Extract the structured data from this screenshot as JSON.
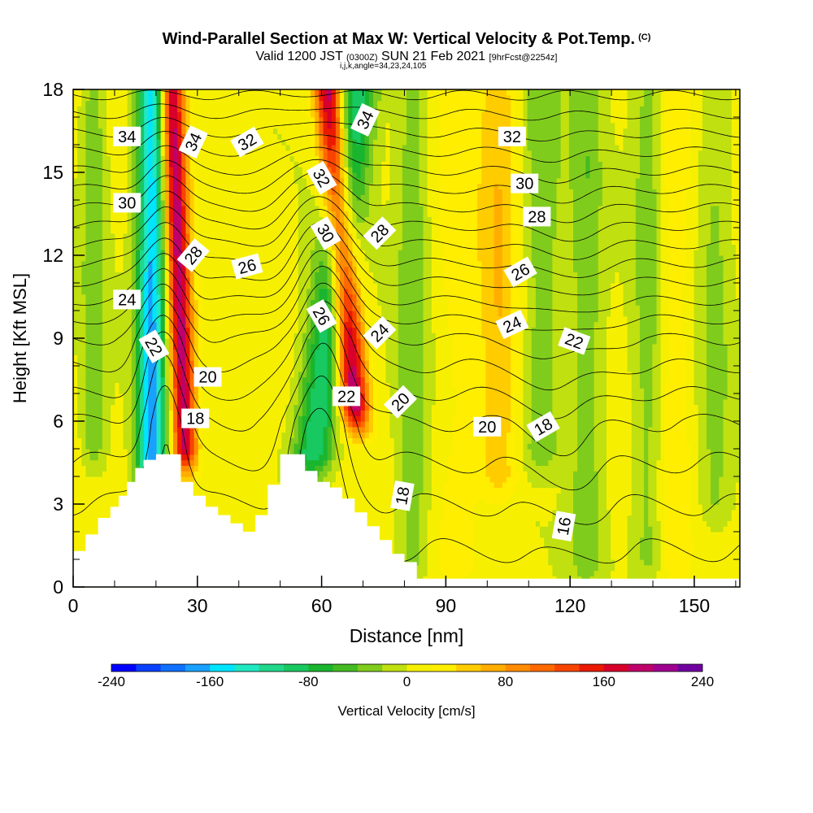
{
  "header": {
    "title": "Wind-Parallel Section at Max W: Vertical Velocity & Pot.Temp.",
    "copyright": "(C)",
    "valid_prefix": "Valid 1200 JST",
    "valid_utc": "(0300Z)",
    "valid_date": "SUN 21 Feb 2021",
    "forecast": "[9hrFcst@2254z]",
    "indices": "i,j,k,angle=34,23,24,105"
  },
  "colors": {
    "vv_levels": [
      -240,
      -220,
      -200,
      -180,
      -160,
      -140,
      -120,
      -100,
      -80,
      -60,
      -40,
      -20,
      0,
      20,
      40,
      60,
      80,
      100,
      120,
      140,
      160,
      180,
      200,
      220,
      240
    ],
    "vv_palette": [
      "#0000ff",
      "#0a40ff",
      "#1070ff",
      "#1aa0ff",
      "#00e5ff",
      "#20e8c0",
      "#20d88a",
      "#18c860",
      "#1ab52f",
      "#44bb22",
      "#80cc1c",
      "#c0e010",
      "#f6f000",
      "#ffee00",
      "#ffcc00",
      "#ffae00",
      "#ff8c00",
      "#ff6a00",
      "#f84400",
      "#ea1a00",
      "#d8002a",
      "#c0006a",
      "#a00090",
      "#7000a0"
    ],
    "contour": "#000000",
    "terrain": "#ffffff"
  },
  "chart_data": {
    "type": "heatmap",
    "xlabel": "Distance [nm]",
    "ylabel": "Height [Kft MSL]",
    "xlim": [
      0,
      161
    ],
    "ylim": [
      0,
      18
    ],
    "x_ticks": [
      0,
      30,
      60,
      90,
      120,
      150
    ],
    "y_ticks": [
      0,
      3,
      6,
      9,
      12,
      15,
      18
    ],
    "colorbar": {
      "label": "Vertical Velocity [cm/s]",
      "range": [
        -240,
        240
      ],
      "tick_labels": [
        "-240",
        "-160",
        "-80",
        "0",
        "80",
        "160",
        "240"
      ]
    },
    "terrain_profile": {
      "x": [
        0,
        3,
        3,
        6,
        6,
        9,
        9,
        11,
        11,
        13,
        13,
        15,
        15,
        17,
        17,
        20,
        20,
        26,
        26,
        29,
        29,
        32,
        32,
        35,
        35,
        38,
        38,
        41,
        41,
        44,
        44,
        47,
        47,
        50,
        50,
        53,
        53,
        56,
        56,
        59,
        59,
        62,
        62,
        65,
        65,
        68,
        68,
        71,
        71,
        74,
        74,
        77,
        77,
        80,
        80,
        83,
        83,
        161
      ],
      "y": [
        1.3,
        1.3,
        1.9,
        1.9,
        2.5,
        2.5,
        2.9,
        2.9,
        3.3,
        3.3,
        3.8,
        3.8,
        4.3,
        4.3,
        4.6,
        4.6,
        4.8,
        4.8,
        3.8,
        3.8,
        3.3,
        3.3,
        2.9,
        2.9,
        2.6,
        2.6,
        2.3,
        2.3,
        2.0,
        2.0,
        2.6,
        2.6,
        3.7,
        3.7,
        4.8,
        4.8,
        4.8,
        4.8,
        4.2,
        4.2,
        3.8,
        3.8,
        3.6,
        3.6,
        3.2,
        3.2,
        2.7,
        2.7,
        2.2,
        2.2,
        1.7,
        1.7,
        1.2,
        1.2,
        0.9,
        0.9,
        0.3,
        0.3
      ]
    },
    "vertical_velocity_features": [
      {
        "x": 19,
        "value": -170,
        "width": 3.5,
        "base": 4.0,
        "tilt_nm_per_kft": 0.0
      },
      {
        "x": 27,
        "value": 190,
        "width": 3.0,
        "base": 5.0,
        "tilt_nm_per_kft": -0.25
      },
      {
        "x": 58,
        "value": -110,
        "width": 5.0,
        "base": 4.8,
        "tilt_nm_per_kft": 0.8
      },
      {
        "x": 68,
        "value": 195,
        "width": 3.5,
        "base": 6.5,
        "tilt_nm_per_kft": -0.55
      },
      {
        "x": 82,
        "value": -40,
        "width": 4.0,
        "base": 1.0,
        "tilt_nm_per_kft": 0.0
      },
      {
        "x": 93,
        "value": 20,
        "width": 6.0,
        "base": 1.0,
        "tilt_nm_per_kft": 0.0
      },
      {
        "x": 103,
        "value": 50,
        "width": 5.0,
        "base": 4.0,
        "tilt_nm_per_kft": 0.0
      },
      {
        "x": 113,
        "value": -40,
        "width": 5.0,
        "base": 5.0,
        "tilt_nm_per_kft": 0.0
      },
      {
        "x": 124,
        "value": -40,
        "width": 4.0,
        "base": 1.0,
        "tilt_nm_per_kft": 0.0
      },
      {
        "x": 139,
        "value": -35,
        "width": 4.0,
        "base": 1.0,
        "tilt_nm_per_kft": 0.0
      },
      {
        "x": 145,
        "value": 30,
        "width": 4.0,
        "base": 1.0,
        "tilt_nm_per_kft": 0.0
      },
      {
        "x": 155,
        "value": -30,
        "width": 4.0,
        "base": 3.0,
        "tilt_nm_per_kft": 0.0
      },
      {
        "x": 5,
        "value": -40,
        "width": 3.0,
        "base": 5.0,
        "tilt_nm_per_kft": 0.0
      }
    ],
    "theta_levels": [
      16,
      17,
      18,
      19,
      20,
      21,
      22,
      23,
      24,
      25,
      26,
      27,
      28,
      29,
      30,
      31,
      32,
      33,
      34,
      35
    ],
    "theta_profile": {
      "height": [
        0,
        3,
        6,
        9,
        12,
        15,
        18
      ],
      "theta": [
        15.2,
        17.0,
        19.0,
        22.0,
        26.4,
        30.9,
        35.3
      ]
    },
    "theta_perturbations": [
      {
        "x": 22,
        "amplitude": -3.2,
        "width": 6
      },
      {
        "x": 60,
        "amplitude": -4.0,
        "width": 8
      },
      {
        "x": 118,
        "amplitude": 0.8,
        "width": 10
      }
    ],
    "contour_labels": [
      {
        "text": "34",
        "x": 13,
        "y": 16.3,
        "angle": 0
      },
      {
        "text": "34",
        "x": 29,
        "y": 16.1,
        "angle": -65
      },
      {
        "text": "32",
        "x": 42,
        "y": 16.1,
        "angle": -30
      },
      {
        "text": "34",
        "x": 70.5,
        "y": 16.9,
        "angle": -65
      },
      {
        "text": "32",
        "x": 60,
        "y": 14.8,
        "angle": 60
      },
      {
        "text": "32",
        "x": 106,
        "y": 16.3,
        "angle": 0
      },
      {
        "text": "30",
        "x": 13,
        "y": 13.9,
        "angle": 0
      },
      {
        "text": "30",
        "x": 109,
        "y": 14.6,
        "angle": 0
      },
      {
        "text": "30",
        "x": 61,
        "y": 12.8,
        "angle": 60
      },
      {
        "text": "28",
        "x": 29,
        "y": 12.0,
        "angle": -50
      },
      {
        "text": "28",
        "x": 74,
        "y": 12.8,
        "angle": -45
      },
      {
        "text": "28",
        "x": 112,
        "y": 13.4,
        "angle": 0
      },
      {
        "text": "26",
        "x": 42,
        "y": 11.6,
        "angle": -15
      },
      {
        "text": "26",
        "x": 108,
        "y": 11.4,
        "angle": -30
      },
      {
        "text": "26",
        "x": 60,
        "y": 9.8,
        "angle": 60
      },
      {
        "text": "24",
        "x": 13,
        "y": 10.4,
        "angle": 0
      },
      {
        "text": "24",
        "x": 74,
        "y": 9.2,
        "angle": -45
      },
      {
        "text": "24",
        "x": 106,
        "y": 9.5,
        "angle": -25
      },
      {
        "text": "22",
        "x": 19.5,
        "y": 8.7,
        "angle": 60
      },
      {
        "text": "22",
        "x": 121,
        "y": 8.9,
        "angle": 20
      },
      {
        "text": "22",
        "x": 66,
        "y": 6.9,
        "angle": 0
      },
      {
        "text": "20",
        "x": 32.5,
        "y": 7.6,
        "angle": 0
      },
      {
        "text": "20",
        "x": 79,
        "y": 6.7,
        "angle": -45
      },
      {
        "text": "20",
        "x": 100,
        "y": 5.8,
        "angle": 0
      },
      {
        "text": "18",
        "x": 29.5,
        "y": 6.1,
        "angle": 0
      },
      {
        "text": "18",
        "x": 113.5,
        "y": 5.8,
        "angle": -30
      },
      {
        "text": "18",
        "x": 79.5,
        "y": 3.3,
        "angle": -80
      },
      {
        "text": "16",
        "x": 118.5,
        "y": 2.2,
        "angle": -80
      }
    ]
  }
}
